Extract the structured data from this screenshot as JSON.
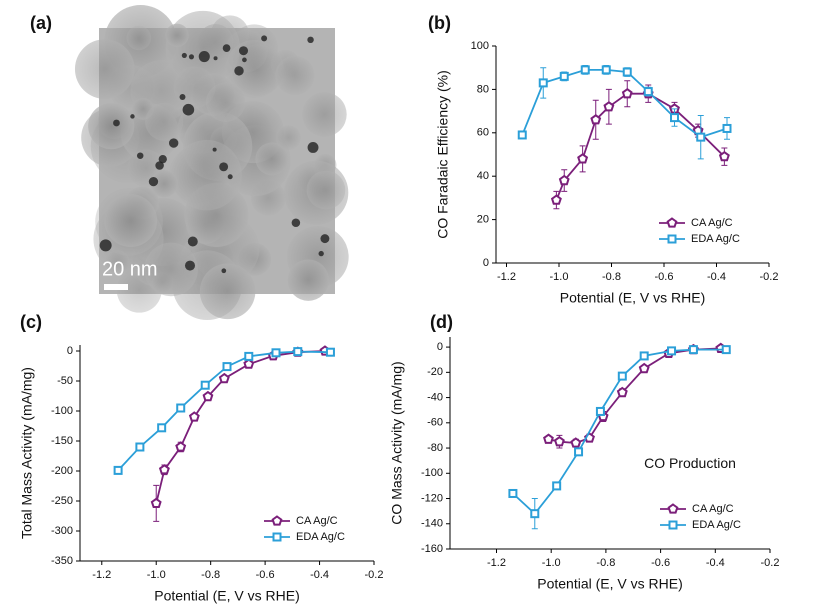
{
  "image": {
    "label": "(a)",
    "scale_bar": "20 nm"
  },
  "chart_data": [
    {
      "type": "line",
      "label": "(b)",
      "xlabel": "Potential (E, V vs RHE)",
      "ylabel": "CO Faradaic Efficiency (%)",
      "xlim": [
        -1.24,
        -0.2
      ],
      "xticks": [
        -1.2,
        {
          "value": -1.0,
          "label": "-1.0"
        },
        -0.8,
        -0.6,
        -0.4,
        -0.2
      ],
      "ylim": [
        0,
        100
      ],
      "yticks": [
        0,
        20,
        40,
        60,
        80,
        100
      ],
      "legend": "lower right",
      "series": [
        {
          "name": "CA Ag/C",
          "color": "#7b1f7a",
          "marker": "pentagon",
          "x": [
            -1.01,
            -0.98,
            -0.91,
            -0.86,
            -0.81,
            -0.74,
            -0.66,
            -0.56,
            -0.47,
            -0.37
          ],
          "values": [
            29,
            38,
            48,
            66,
            72,
            78,
            78,
            71,
            61,
            49
          ],
          "errors": [
            4,
            5,
            6,
            9,
            8,
            6,
            4,
            3,
            3,
            4
          ]
        },
        {
          "name": "EDA Ag/C",
          "color": "#2b9fd8",
          "marker": "square",
          "x": [
            -1.14,
            -1.06,
            -0.98,
            -0.9,
            -0.82,
            -0.74,
            -0.66,
            -0.56,
            -0.46,
            -0.36
          ],
          "values": [
            59,
            83,
            86,
            89,
            89,
            88,
            79,
            67,
            58,
            62
          ],
          "errors": [
            0,
            7,
            2,
            2,
            2,
            2,
            2,
            4,
            10,
            5
          ]
        }
      ]
    },
    {
      "type": "line",
      "label": "(c)",
      "xlabel": "Potential (E, V vs RHE)",
      "ylabel": "Total Mass Activity (mA/mg)",
      "xlim": [
        -1.28,
        -0.2
      ],
      "xticks": [
        -1.2,
        {
          "value": -1.0,
          "label": "-1.0"
        },
        -0.8,
        -0.6,
        -0.4,
        -0.2
      ],
      "ylim": [
        -350,
        10
      ],
      "yticks": [
        -350,
        -300,
        -250,
        -200,
        -150,
        -100,
        -50,
        0
      ],
      "legend": "lower right",
      "series": [
        {
          "name": "CA Ag/C",
          "color": "#7b1f7a",
          "marker": "pentagon",
          "x": [
            -1.0,
            -0.97,
            -0.91,
            -0.86,
            -0.81,
            -0.75,
            -0.66,
            -0.57,
            -0.48,
            -0.38
          ],
          "values": [
            -254,
            -198,
            -160,
            -110,
            -76,
            -46,
            -22,
            -8,
            -2,
            0
          ],
          "errors": [
            30,
            8,
            8,
            5,
            4,
            3,
            3,
            2,
            2,
            2
          ]
        },
        {
          "name": "EDA Ag/C",
          "color": "#2b9fd8",
          "marker": "square",
          "x": [
            -1.14,
            -1.06,
            -0.98,
            -0.91,
            -0.82,
            -0.74,
            -0.66,
            -0.56,
            -0.48,
            -0.36
          ],
          "values": [
            -199,
            -160,
            -128,
            -95,
            -57,
            -26,
            -9,
            -3,
            -1,
            -2
          ],
          "errors": [
            3,
            3,
            3,
            3,
            3,
            3,
            2,
            2,
            2,
            2
          ]
        }
      ]
    },
    {
      "type": "line",
      "label": "(d)",
      "xlabel": "Potential (E, V vs RHE)",
      "ylabel": "CO Mass Activity (mA/mg)",
      "annotation": "CO Production",
      "xlim": [
        -1.37,
        -0.2
      ],
      "xticks": [
        -1.2,
        {
          "value": -1.0,
          "label": "-1.0"
        },
        -0.8,
        -0.6,
        -0.4,
        -0.2
      ],
      "ylim": [
        -160,
        8
      ],
      "yticks": [
        -160,
        -140,
        -120,
        -100,
        -80,
        -60,
        -40,
        -20,
        0
      ],
      "legend": "lower right",
      "series": [
        {
          "name": "CA Ag/C",
          "color": "#7b1f7a",
          "marker": "pentagon",
          "x": [
            -1.01,
            -0.97,
            -0.91,
            -0.86,
            -0.81,
            -0.74,
            -0.66,
            -0.57,
            -0.48,
            -0.38
          ],
          "values": [
            -73,
            -75,
            -76,
            -72,
            -55,
            -36,
            -17,
            -5,
            -2,
            -1
          ],
          "errors": [
            2,
            5,
            3,
            3,
            4,
            3,
            2,
            1,
            1,
            1
          ]
        },
        {
          "name": "EDA Ag/C",
          "color": "#2b9fd8",
          "marker": "square",
          "x": [
            -1.14,
            -1.06,
            -0.98,
            -0.9,
            -0.82,
            -0.74,
            -0.66,
            -0.56,
            -0.48,
            -0.36
          ],
          "values": [
            -116,
            -132,
            -110,
            -83,
            -51,
            -23,
            -7,
            -3,
            -2,
            -2
          ],
          "errors": [
            2,
            12,
            2,
            2,
            2,
            2,
            1,
            1,
            1,
            1
          ]
        }
      ]
    }
  ]
}
